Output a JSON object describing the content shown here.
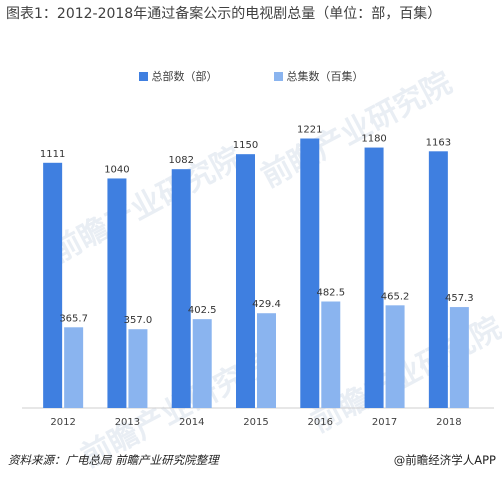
{
  "title": "图表1：2012-2018年通过备案公示的电视剧总量（单位：部，百集）",
  "watermark": "前瞻产业研究院",
  "footer": {
    "source": "资料来源：广电总局  前瞻产业研究院整理",
    "credit": "@前瞻经济学人APP",
    "credit_icon": "at-icon"
  },
  "colors": {
    "series1": "#3f7fe0",
    "series2": "#8ab4ef",
    "axis": "#cfcfcf"
  },
  "chart_data": {
    "type": "bar",
    "title": "图表1：2012-2018年通过备案公示的电视剧总量（单位：部，百集）",
    "categories": [
      "2012",
      "2013",
      "2014",
      "2015",
      "2016",
      "2017",
      "2018"
    ],
    "series": [
      {
        "name": "总部数（部）",
        "values": [
          1111,
          1040,
          1082,
          1150,
          1221,
          1180,
          1163
        ],
        "labels": [
          "1111",
          "1040",
          "1082",
          "1150",
          "1221",
          "1180",
          "1163"
        ]
      },
      {
        "name": "总集数（百集）",
        "values": [
          365.7,
          357.0,
          402.5,
          429.4,
          482.5,
          465.2,
          457.3
        ],
        "labels": [
          "365.7",
          "357.0",
          "402.5",
          "429.4",
          "482.5",
          "465.2",
          "457.3"
        ]
      }
    ],
    "ylim": [
      0,
      1400
    ],
    "grid": false,
    "legend": "top-center"
  }
}
